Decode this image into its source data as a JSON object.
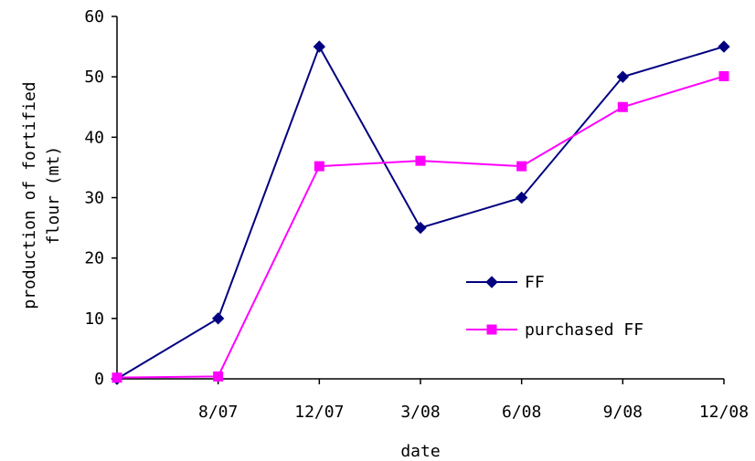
{
  "chart_data": {
    "type": "line",
    "title": "",
    "xlabel": "date",
    "ylabel_lines": [
      "production of fortified",
      "flour (mt)"
    ],
    "categories": [
      "",
      "8/07",
      "12/07",
      "3/08",
      "6/08",
      "9/08",
      "12/08"
    ],
    "ylim": [
      0,
      60
    ],
    "yticks": [
      0,
      10,
      20,
      30,
      40,
      50,
      60
    ],
    "grid": false,
    "legend_position": "center-right",
    "series": [
      {
        "name": "FF",
        "color": "#000080",
        "marker": "diamond",
        "values": [
          0,
          10,
          55,
          25,
          30,
          50,
          55
        ]
      },
      {
        "name": "purchased FF",
        "color": "#FF00FF",
        "marker": "square",
        "values": [
          0.2,
          0.4,
          35.2,
          36.1,
          35.2,
          45,
          50.1
        ]
      }
    ]
  }
}
